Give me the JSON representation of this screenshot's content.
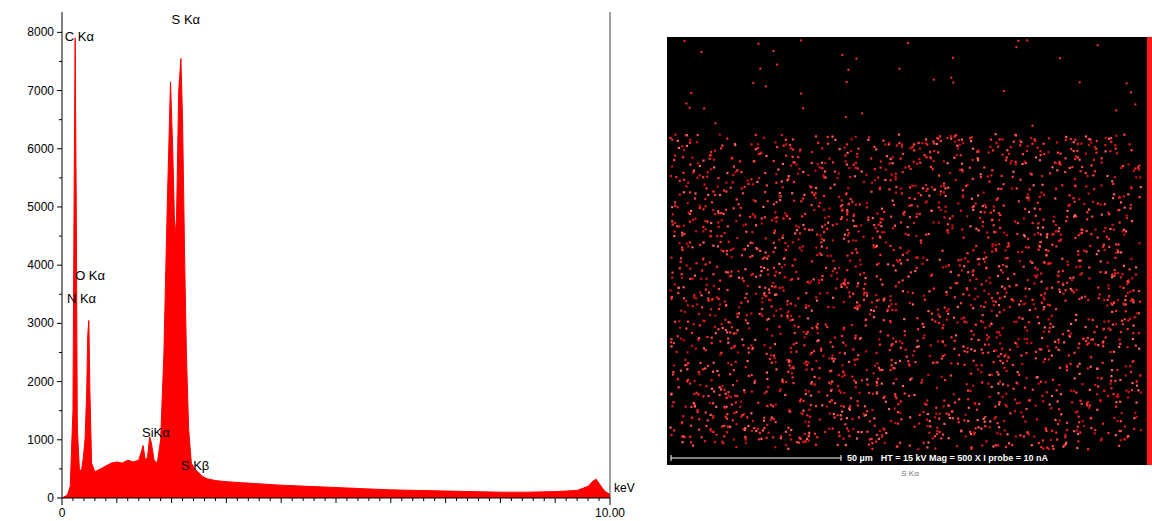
{
  "chart_data": {
    "type": "area",
    "color": "#ff0000",
    "x_label": "keV",
    "xlim": [
      0,
      10
    ],
    "xticks": [
      0,
      {
        "value": 10,
        "label": "10.00"
      }
    ],
    "ylim": [
      0,
      8350
    ],
    "yticks": [
      0,
      1000,
      2000,
      3000,
      4000,
      5000,
      6000,
      7000,
      8000
    ],
    "x": [
      0,
      0.1,
      0.15,
      0.2,
      0.22,
      0.24,
      0.26,
      0.28,
      0.32,
      0.36,
      0.39,
      0.42,
      0.45,
      0.47,
      0.49,
      0.51,
      0.54,
      0.6,
      0.7,
      0.8,
      0.9,
      1.0,
      1.1,
      1.2,
      1.3,
      1.4,
      1.45,
      1.48,
      1.52,
      1.56,
      1.6,
      1.63,
      1.68,
      1.74,
      1.8,
      1.86,
      1.92,
      1.98,
      2.02,
      2.06,
      2.09,
      2.13,
      2.17,
      2.2,
      2.24,
      2.27,
      2.31,
      2.36,
      2.42,
      2.48,
      2.55,
      2.65,
      2.8,
      3.0,
      3.5,
      4,
      4.5,
      5,
      5.5,
      6,
      6.5,
      7,
      7.5,
      8,
      8.5,
      9,
      9.4,
      9.6,
      9.7,
      9.75,
      9.8,
      9.9,
      10
    ],
    "values": [
      0,
      50,
      200,
      1500,
      5000,
      7900,
      5000,
      1200,
      450,
      500,
      700,
      1000,
      1800,
      2800,
      3050,
      1800,
      600,
      450,
      500,
      550,
      600,
      620,
      600,
      650,
      620,
      650,
      800,
      900,
      650,
      700,
      1050,
      950,
      650,
      600,
      1000,
      2500,
      5000,
      7150,
      6000,
      4500,
      4800,
      7000,
      7550,
      6500,
      4000,
      2500,
      1200,
      600,
      500,
      450,
      380,
      330,
      300,
      280,
      250,
      220,
      200,
      180,
      160,
      140,
      130,
      120,
      110,
      100,
      100,
      110,
      130,
      200,
      300,
      320,
      250,
      120,
      60
    ],
    "annotations": [
      {
        "text": "C Kα",
        "x": 0.05,
        "y": 7850
      },
      {
        "text": "S Kα",
        "x": 2.0,
        "y": 8140
      },
      {
        "text": "O Kα",
        "x": 0.24,
        "y": 3750
      },
      {
        "text": "N Kα",
        "x": 0.09,
        "y": 3350
      },
      {
        "text": "SiKα",
        "x": 1.46,
        "y": 1050
      },
      {
        "text": "S Kβ",
        "x": 2.17,
        "y": 480
      }
    ]
  },
  "map": {
    "scale_bar": "50 µm",
    "info": "HT = 15 kV   Mag = 500 X   I probe = 10 nA",
    "caption": "S Kα"
  }
}
